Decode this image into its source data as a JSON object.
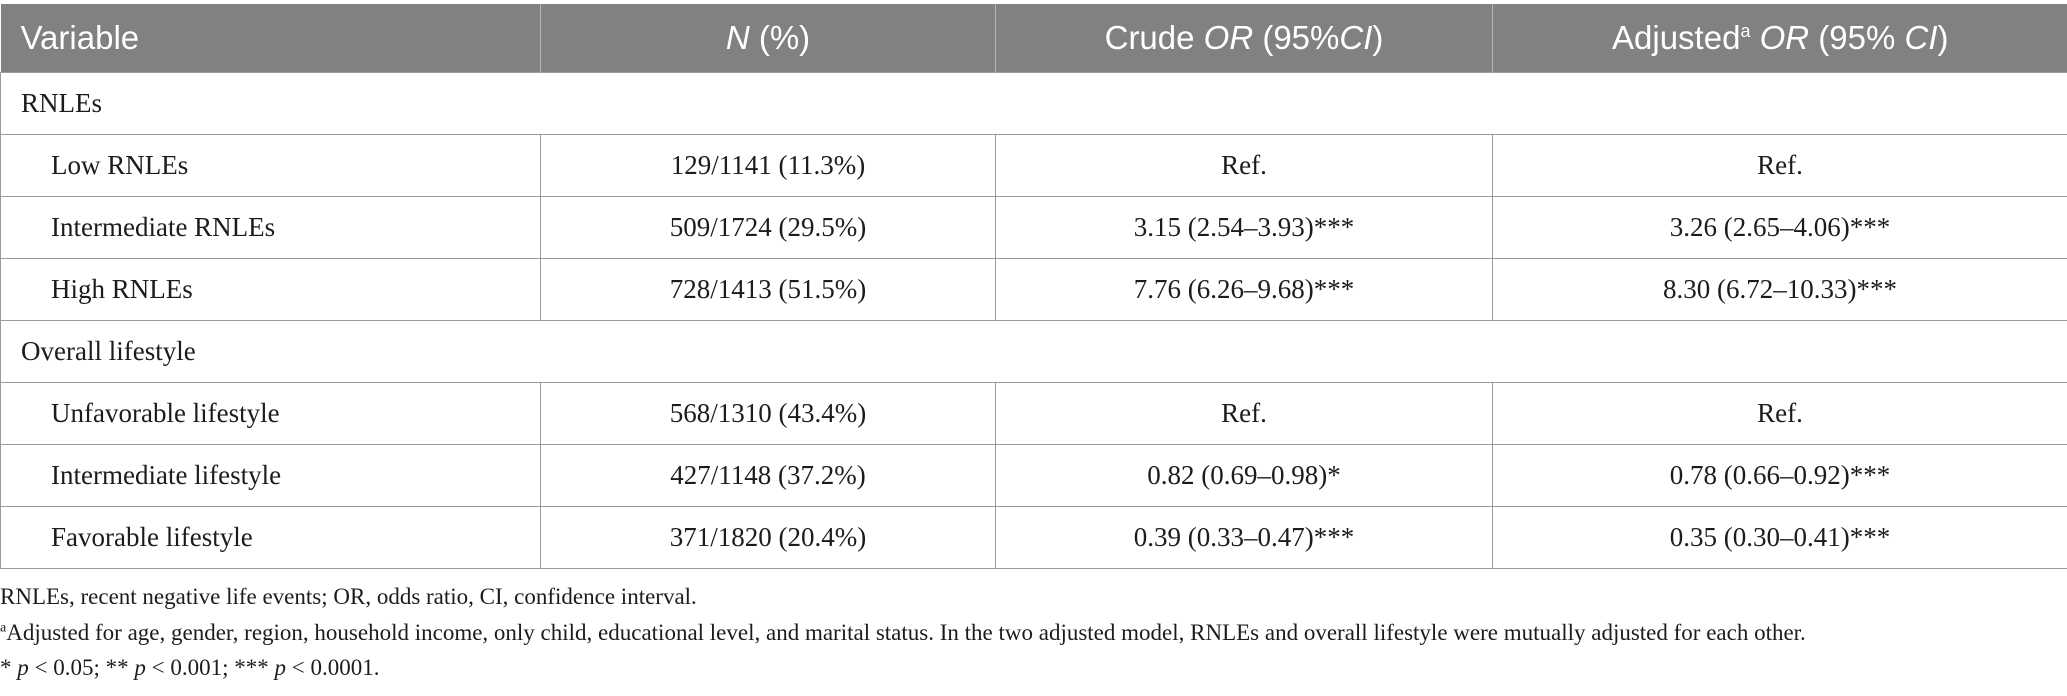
{
  "table": {
    "headers": {
      "variable": "Variable",
      "n_italic": "N",
      "n_rest": " (%)",
      "crude_pre": "Crude ",
      "crude_or": "OR",
      "crude_mid": " (95%",
      "crude_ci": "CI",
      "crude_post": ")",
      "adj_pre": "Adjusted",
      "adj_sup": "a",
      "adj_sp": " ",
      "adj_or": "OR",
      "adj_mid": " (95% ",
      "adj_ci": "CI",
      "adj_post": ")"
    },
    "groups": [
      {
        "title": "RNLEs",
        "rows": [
          {
            "label": "Low RNLEs",
            "n": "129/1141 (11.3%)",
            "crude": "Ref.",
            "adjusted": "Ref."
          },
          {
            "label": "Intermediate RNLEs",
            "n": "509/1724 (29.5%)",
            "crude": "3.15 (2.54–3.93)***",
            "adjusted": "3.26 (2.65–4.06)***"
          },
          {
            "label": "High RNLEs",
            "n": "728/1413 (51.5%)",
            "crude": "7.76 (6.26–9.68)***",
            "adjusted": "8.30 (6.72–10.33)***"
          }
        ]
      },
      {
        "title": "Overall lifestyle",
        "rows": [
          {
            "label": "Unfavorable lifestyle",
            "n": "568/1310 (43.4%)",
            "crude": "Ref.",
            "adjusted": "Ref."
          },
          {
            "label": "Intermediate lifestyle",
            "n": "427/1148 (37.2%)",
            "crude": "0.82 (0.69–0.98)*",
            "adjusted": "0.78 (0.66–0.92)***"
          },
          {
            "label": "Favorable lifestyle",
            "n": "371/1820 (20.4%)",
            "crude": "0.39 (0.33–0.47)***",
            "adjusted": "0.35 (0.30–0.41)***"
          }
        ]
      }
    ]
  },
  "notes": {
    "abbreviations": "RNLEs, recent negative life events; OR, odds ratio, CI, confidence interval.",
    "footnote_mark": "a",
    "footnote_text": "Adjusted for age, gender, region, household income, only child, educational level, and marital status. In the two adjusted model, RNLEs and overall lifestyle were mutually adjusted for each other.",
    "sig": [
      {
        "prefix": "* ",
        "p": "p",
        "rest": " < 0.05; "
      },
      {
        "prefix": "** ",
        "p": "p",
        "rest": " < 0.001; "
      },
      {
        "prefix": "*** ",
        "p": "p",
        "rest": " < 0.0001."
      }
    ]
  },
  "colors": {
    "header_bg": "#818181",
    "header_text": "#ffffff",
    "border": "#9a9a9a"
  }
}
